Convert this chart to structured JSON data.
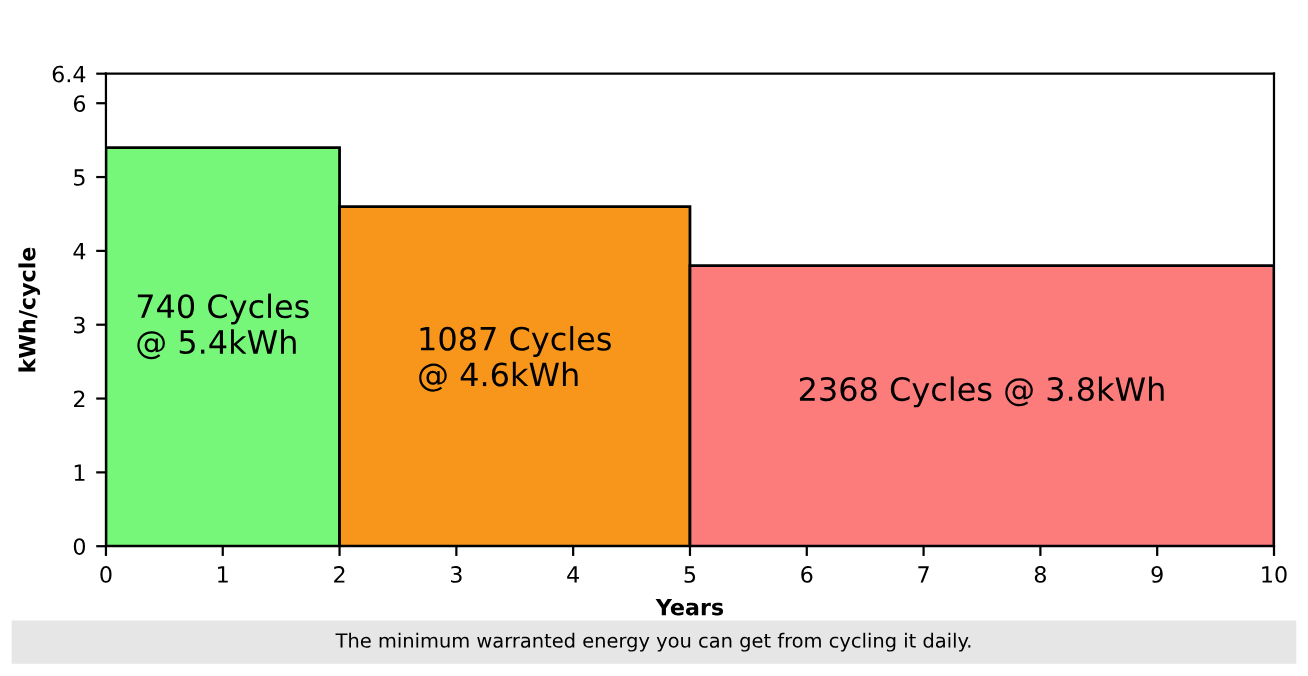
{
  "chart_data": {
    "type": "histogram",
    "bins": [
      0,
      2,
      5,
      10
    ],
    "values": [
      5.4,
      4.6,
      3.8
    ],
    "colors": [
      "#77f77a",
      "#f8961c",
      "#fc7b7b"
    ],
    "xlabel": "Years",
    "ylabel": "kWh/cycle",
    "xlim": [
      0,
      10
    ],
    "xticks": [
      0,
      1,
      2,
      3,
      4,
      5,
      6,
      7,
      8,
      9,
      10
    ],
    "ylim": [
      0,
      6.4
    ],
    "yticks": [
      0,
      1,
      2,
      3,
      4,
      5,
      6,
      6.4
    ],
    "grid": false,
    "legend": false,
    "value_labels": [
      "740 Cycles\n@ 5.4kWh",
      "1087 Cycles\n@ 4.6kWh",
      "2368 Cycles @ 3.8kWh"
    ],
    "annotations": [
      "The minimum warranted energy you can get from cycling it daily."
    ]
  }
}
